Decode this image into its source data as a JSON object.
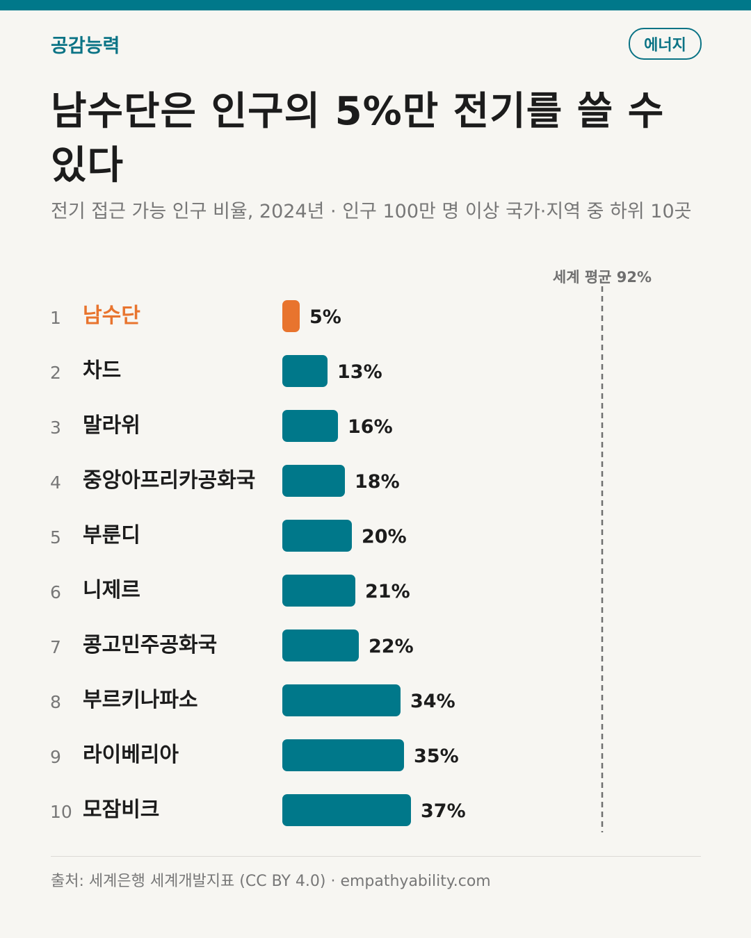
{
  "header": {
    "brand": "공감능력",
    "tag": "에너지"
  },
  "title": "남수단은 인구의 5%만 전기를 쓸 수 있다",
  "subtitle": "전기 접근 가능 인구 비율, 2024년 · 인구 100만 명 이상 국가·지역 중 하위 10곳",
  "colors": {
    "highlight": "#e8742e",
    "bar": "#00788a",
    "accent_text": "#0a7385"
  },
  "chart_data": {
    "type": "bar",
    "orientation": "horizontal",
    "ranks": [
      "1",
      "2",
      "3",
      "4",
      "5",
      "6",
      "7",
      "8",
      "9",
      "10"
    ],
    "categories": [
      "남수단",
      "차드",
      "말라위",
      "중앙아프리카공화국",
      "부룬디",
      "니제르",
      "콩고민주공화국",
      "부르키나파소",
      "라이베리아",
      "모잠비크"
    ],
    "values": [
      5,
      13,
      16,
      18,
      20,
      21,
      22,
      34,
      35,
      37
    ],
    "value_labels": [
      "5%",
      "13%",
      "16%",
      "18%",
      "20%",
      "21%",
      "22%",
      "34%",
      "35%",
      "37%"
    ],
    "unit": "%",
    "highlight_category": "남수단",
    "xlim": [
      0,
      100
    ],
    "reference_line": {
      "value": 92,
      "label": "세계 평균 92%"
    },
    "grid": false
  },
  "footer": {
    "source": "출처: 세계은행 세계개발지표 (CC BY 4.0) · empathyability.com"
  }
}
